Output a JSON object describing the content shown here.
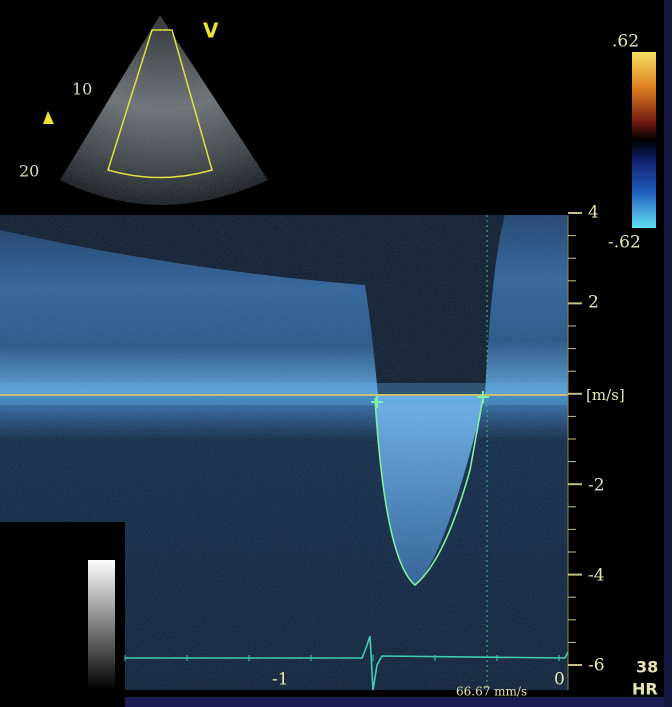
{
  "sector": {
    "orientation_marker": "V",
    "depth_labels": [
      "10",
      "20"
    ]
  },
  "color_scale": {
    "max": ".62",
    "min": "-.62"
  },
  "velocity_axis": {
    "ticks": [
      "4",
      "2",
      "[m/s]",
      "-2",
      "-4",
      "-6"
    ]
  },
  "time_axis": {
    "ticks": [
      "-1",
      "0"
    ],
    "sweep_speed": "66.67 mm/s"
  },
  "heart_rate": {
    "value": "38",
    "label": "HR"
  }
}
